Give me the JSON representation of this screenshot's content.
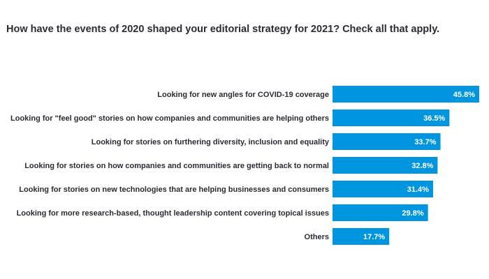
{
  "chart_data": {
    "type": "bar",
    "orientation": "horizontal",
    "title": "How have the events of 2020 shaped your editorial strategy for 2021? Check all that apply.",
    "categories": [
      "Looking for new angles for COVID-19 coverage",
      "Looking for \"feel good\" stories on how companies and communities are helping others",
      "Looking for stories on furthering diversity, inclusion and equality",
      "Looking for stories on how companies and communities are getting back to normal",
      "Looking for stories on new technologies that are helping businesses and consumers",
      "Looking for more research-based, thought leadership content covering topical issues",
      "Others"
    ],
    "values": [
      45.8,
      36.5,
      33.7,
      32.8,
      31.4,
      29.8,
      17.7
    ],
    "value_labels": [
      "45.8%",
      "36.5%",
      "33.7%",
      "32.8%",
      "31.4%",
      "29.8%",
      "17.7%"
    ],
    "xlim": [
      0,
      45.8
    ],
    "grid": false,
    "colors": {
      "bar": "#0096df",
      "value_label": "#ffffff",
      "category_label": "#2b2b33",
      "title": "#2b2b33"
    }
  }
}
